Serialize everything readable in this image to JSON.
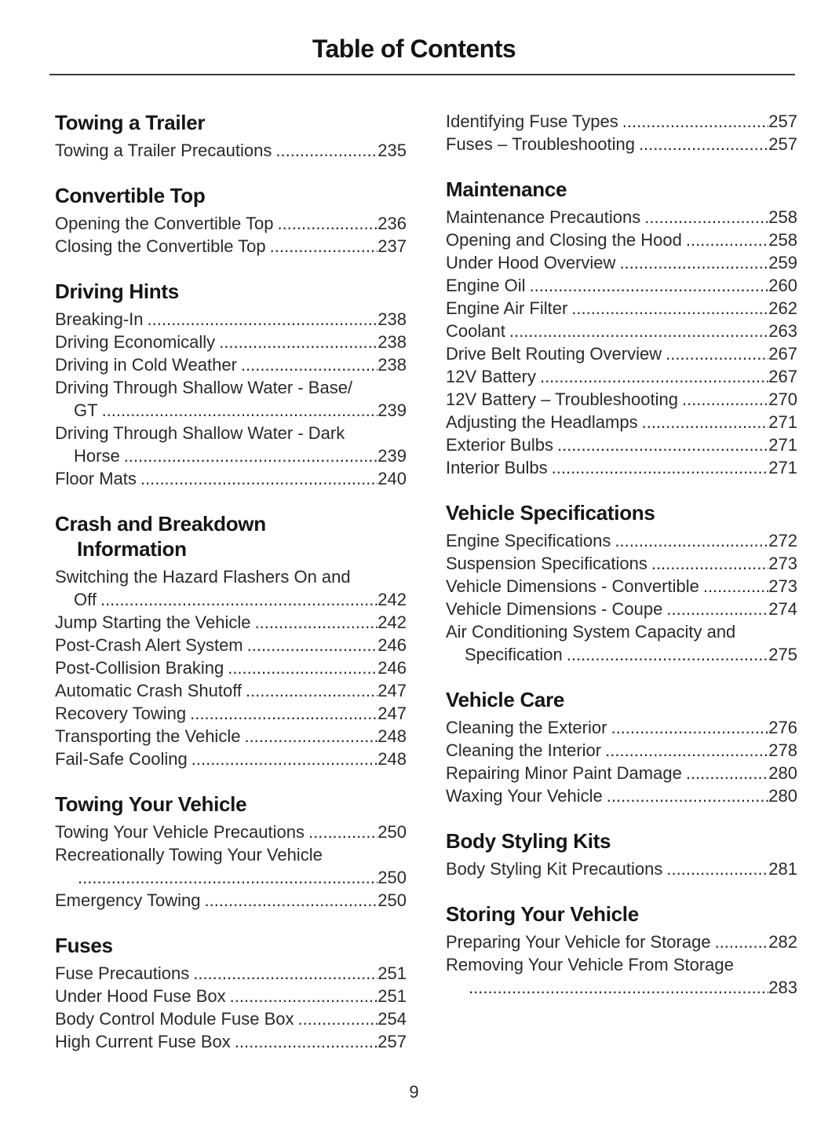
{
  "page": {
    "title": "Table of Contents",
    "page_number": "9"
  },
  "toc": {
    "columns": [
      {
        "sections": [
          {
            "heading": [
              "Towing a Trailer"
            ],
            "entries": [
              {
                "text": "Towing a Trailer Precautions",
                "page": "235"
              }
            ]
          },
          {
            "heading": [
              "Convertible Top"
            ],
            "entries": [
              {
                "text": "Opening the Convertible Top",
                "page": "236"
              },
              {
                "text": "Closing the Convertible Top",
                "page": "237"
              }
            ]
          },
          {
            "heading": [
              "Driving Hints"
            ],
            "entries": [
              {
                "text": "Breaking-In",
                "page": "238"
              },
              {
                "text": "Driving Economically",
                "page": "238"
              },
              {
                "text": "Driving in Cold Weather",
                "page": "238"
              },
              {
                "text": "Driving Through Shallow Water - Base/",
                "text2": "GT",
                "page": "239"
              },
              {
                "text": "Driving Through Shallow Water - Dark",
                "text2": "Horse",
                "page": "239"
              },
              {
                "text": "Floor Mats",
                "page": "240"
              }
            ]
          },
          {
            "heading": [
              "Crash and Breakdown",
              "Information"
            ],
            "entries": [
              {
                "text": "Switching the Hazard Flashers On and",
                "text2": "Off",
                "page": "242"
              },
              {
                "text": "Jump Starting the Vehicle",
                "page": "242"
              },
              {
                "text": "Post-Crash Alert System",
                "page": "246"
              },
              {
                "text": "Post-Collision Braking",
                "page": "246"
              },
              {
                "text": "Automatic Crash Shutoff",
                "page": "247"
              },
              {
                "text": "Recovery Towing",
                "page": "247"
              },
              {
                "text": "Transporting the Vehicle",
                "page": "248"
              },
              {
                "text": "Fail-Safe Cooling",
                "page": "248"
              }
            ]
          },
          {
            "heading": [
              "Towing Your Vehicle"
            ],
            "entries": [
              {
                "text": "Towing Your Vehicle Precautions",
                "page": "250"
              },
              {
                "text": "Recreationally Towing Your Vehicle",
                "text2": "",
                "page": "250"
              },
              {
                "text": "Emergency Towing",
                "page": "250"
              }
            ]
          },
          {
            "heading": [
              "Fuses"
            ],
            "entries": [
              {
                "text": "Fuse Precautions",
                "page": "251"
              },
              {
                "text": "Under Hood Fuse Box",
                "page": "251"
              },
              {
                "text": "Body Control Module Fuse Box",
                "page": "254"
              },
              {
                "text": "High Current Fuse Box",
                "page": "257"
              }
            ]
          }
        ]
      },
      {
        "sections": [
          {
            "heading": [],
            "entries": [
              {
                "text": "Identifying Fuse Types",
                "page": "257"
              },
              {
                "text": "Fuses – Troubleshooting",
                "page": "257"
              }
            ]
          },
          {
            "heading": [
              "Maintenance"
            ],
            "entries": [
              {
                "text": "Maintenance Precautions",
                "page": "258"
              },
              {
                "text": "Opening and Closing the Hood",
                "page": "258"
              },
              {
                "text": "Under Hood Overview",
                "page": "259"
              },
              {
                "text": "Engine Oil",
                "page": "260"
              },
              {
                "text": "Engine Air Filter",
                "page": "262"
              },
              {
                "text": "Coolant",
                "page": "263"
              },
              {
                "text": "Drive Belt Routing Overview",
                "page": "267"
              },
              {
                "text": "12V Battery",
                "page": "267"
              },
              {
                "text": "12V Battery – Troubleshooting",
                "page": "270"
              },
              {
                "text": "Adjusting the Headlamps",
                "page": "271"
              },
              {
                "text": "Exterior Bulbs",
                "page": "271"
              },
              {
                "text": "Interior Bulbs",
                "page": "271"
              }
            ]
          },
          {
            "heading": [
              "Vehicle Specifications"
            ],
            "entries": [
              {
                "text": "Engine Specifications",
                "page": "272"
              },
              {
                "text": "Suspension Specifications",
                "page": "273"
              },
              {
                "text": "Vehicle Dimensions - Convertible",
                "page": "273"
              },
              {
                "text": "Vehicle Dimensions - Coupe",
                "page": "274"
              },
              {
                "text": "Air Conditioning System Capacity and",
                "text2": "Specification",
                "page": "275"
              }
            ]
          },
          {
            "heading": [
              "Vehicle Care"
            ],
            "entries": [
              {
                "text": "Cleaning the Exterior",
                "page": "276"
              },
              {
                "text": "Cleaning the Interior",
                "page": "278"
              },
              {
                "text": "Repairing Minor Paint Damage",
                "page": "280"
              },
              {
                "text": "Waxing Your Vehicle",
                "page": "280"
              }
            ]
          },
          {
            "heading": [
              "Body Styling Kits"
            ],
            "entries": [
              {
                "text": "Body Styling Kit Precautions",
                "page": "281"
              }
            ]
          },
          {
            "heading": [
              "Storing Your Vehicle"
            ],
            "entries": [
              {
                "text": "Preparing Your Vehicle for Storage",
                "page": "282"
              },
              {
                "text": "Removing Your Vehicle From Storage",
                "text2": "",
                "page": "283"
              }
            ]
          }
        ]
      }
    ]
  }
}
